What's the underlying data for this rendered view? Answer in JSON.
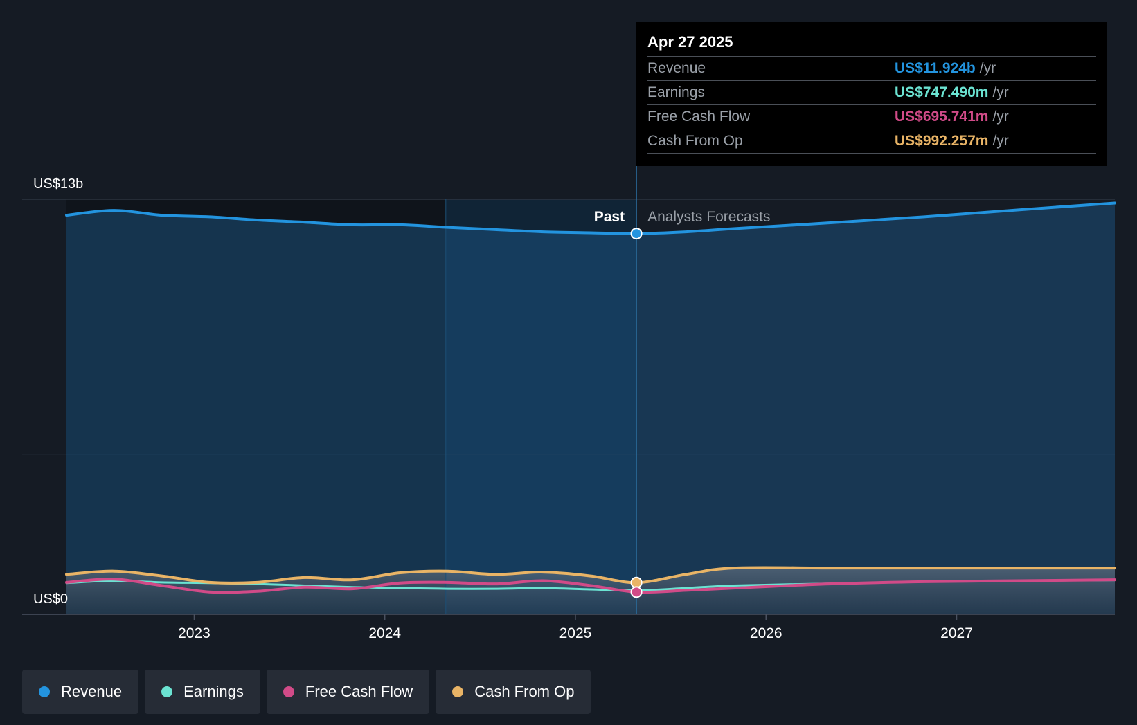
{
  "colors": {
    "revenue": "#2394df",
    "earnings": "#6be3d2",
    "free_cash_flow": "#d14b88",
    "cash_from_op": "#e9b466"
  },
  "chart_data": {
    "type": "line",
    "title": "",
    "xlabel": "",
    "ylabel": "",
    "y_top_label": "US$13b",
    "y_bottom_label": "US$0",
    "ylim": [
      0,
      13
    ],
    "y_unit": "US$ billions",
    "xlim": [
      2022.33,
      2027.83
    ],
    "x_ticks": [
      2023,
      2024,
      2025,
      2026,
      2027
    ],
    "x_tick_labels": [
      "2023",
      "2024",
      "2025",
      "2026",
      "2027"
    ],
    "past_label": "Past",
    "forecast_label": "Analysts Forecasts",
    "divider_x": 2025.32,
    "highlight_start_x": 2024.32,
    "series": [
      {
        "key": "revenue",
        "name": "Revenue",
        "x": [
          2022.33,
          2022.58,
          2022.83,
          2023.08,
          2023.33,
          2023.58,
          2023.83,
          2024.08,
          2024.33,
          2024.58,
          2024.83,
          2025.08,
          2025.32,
          2025.58,
          2025.83,
          2026.33,
          2026.83,
          2027.33,
          2027.83
        ],
        "values": [
          12.5,
          12.65,
          12.5,
          12.45,
          12.35,
          12.28,
          12.2,
          12.2,
          12.12,
          12.05,
          11.98,
          11.95,
          11.924,
          11.98,
          12.08,
          12.26,
          12.45,
          12.67,
          12.88
        ]
      },
      {
        "key": "earnings",
        "name": "Earnings",
        "x": [
          2022.33,
          2022.58,
          2022.83,
          2023.08,
          2023.33,
          2023.58,
          2023.83,
          2024.08,
          2024.33,
          2024.58,
          2024.83,
          2025.08,
          2025.32,
          2025.58,
          2025.83,
          2026.33,
          2026.83,
          2027.33,
          2027.83
        ],
        "values": [
          0.98,
          1.05,
          1.0,
          0.98,
          0.95,
          0.9,
          0.85,
          0.82,
          0.8,
          0.8,
          0.82,
          0.78,
          0.747,
          0.82,
          0.9,
          0.96,
          1.02,
          1.05,
          1.07
        ]
      },
      {
        "key": "free_cash_flow",
        "name": "Free Cash Flow",
        "x": [
          2022.33,
          2022.58,
          2022.83,
          2023.08,
          2023.33,
          2023.58,
          2023.83,
          2024.08,
          2024.33,
          2024.58,
          2024.83,
          2025.08,
          2025.32,
          2025.58,
          2025.83,
          2026.33,
          2026.83,
          2027.33,
          2027.83
        ],
        "values": [
          1.0,
          1.1,
          0.9,
          0.7,
          0.72,
          0.85,
          0.8,
          0.98,
          1.0,
          0.95,
          1.05,
          0.9,
          0.696,
          0.75,
          0.82,
          0.95,
          1.02,
          1.05,
          1.08
        ]
      },
      {
        "key": "cash_from_op",
        "name": "Cash From Op",
        "x": [
          2022.33,
          2022.58,
          2022.83,
          2023.08,
          2023.33,
          2023.58,
          2023.83,
          2024.08,
          2024.33,
          2024.58,
          2024.83,
          2025.08,
          2025.32,
          2025.58,
          2025.83,
          2026.33,
          2026.83,
          2027.33,
          2027.83
        ],
        "values": [
          1.25,
          1.35,
          1.2,
          1.0,
          1.0,
          1.15,
          1.08,
          1.3,
          1.35,
          1.25,
          1.32,
          1.2,
          0.992,
          1.25,
          1.45,
          1.45,
          1.45,
          1.45,
          1.45
        ]
      }
    ]
  },
  "tooltip": {
    "date": "Apr 27 2025",
    "rows": [
      {
        "label": "Revenue",
        "value": "US$11.924b",
        "unit": "/yr"
      },
      {
        "label": "Earnings",
        "value": "US$747.490m",
        "unit": "/yr"
      },
      {
        "label": "Free Cash Flow",
        "value": "US$695.741m",
        "unit": "/yr"
      },
      {
        "label": "Cash From Op",
        "value": "US$992.257m",
        "unit": "/yr"
      }
    ]
  },
  "legend": [
    {
      "label": "Revenue",
      "icon": "circle-dot"
    },
    {
      "label": "Earnings",
      "icon": "circle-dot"
    },
    {
      "label": "Free Cash Flow",
      "icon": "circle-dot"
    },
    {
      "label": "Cash From Op",
      "icon": "circle-dot"
    }
  ]
}
